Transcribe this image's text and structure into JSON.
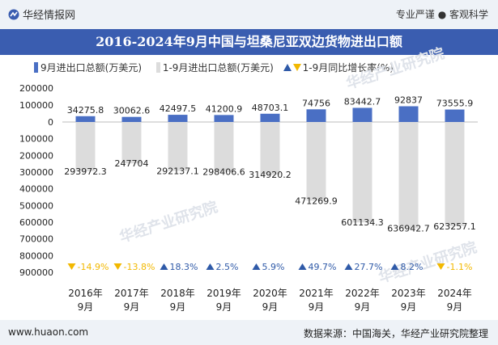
{
  "header": {
    "brand": "华经情报网",
    "tagline": "专业严谨 ● 客观科学"
  },
  "title": "2016-2024年9月中国与坦桑尼亚双边货物进出口额",
  "legend": {
    "monthly": "9月进出口总额(万美元)",
    "cumulative": "1-9月进出口总额(万美元)",
    "rate": "1-9月同比增长率(%)"
  },
  "footer": {
    "site": "www.huaon.com",
    "source": "数据来源：中国海关，华经产业研究院整理"
  },
  "colors": {
    "monthly_bar": "#4a6fc4",
    "cumulative_bar": "#dcdcdc",
    "rate_up": "#2f5aa8",
    "rate_down": "#f2b800",
    "title_bg": "#3a5db0"
  },
  "chart_data": {
    "type": "bar",
    "categories": [
      "2016年\n9月",
      "2017年\n9月",
      "2018年\n9月",
      "2019年\n9月",
      "2020年\n9月",
      "2021年\n9月",
      "2022年\n9月",
      "2023年\n9月",
      "2024年\n9月"
    ],
    "series": [
      {
        "name": "9月进出口总额(万美元)",
        "values": [
          34275.8,
          30062.6,
          42497.5,
          41200.9,
          48703.1,
          74756,
          83442.7,
          92837,
          73555.9
        ],
        "value_labels": [
          "34275.8",
          "30062.6",
          "42497.5",
          "41200.9",
          "48703.1",
          "74756",
          "83442.7",
          "92837",
          "73555.9"
        ]
      },
      {
        "name": "1-9月进出口总额(万美元)",
        "values": [
          -293972.3,
          -247704,
          -292137.1,
          -298406.6,
          -314920.2,
          -471269.9,
          -601134.3,
          -636942.7,
          -623257.1
        ],
        "value_labels": [
          "293972.3",
          "247704",
          "292137.1",
          "298406.6",
          "314920.2",
          "471269.9",
          "601134.3",
          "636942.7",
          "623257.1"
        ]
      },
      {
        "name": "1-9月同比增长率(%)",
        "values": [
          -14.9,
          -13.8,
          18.3,
          2.5,
          5.9,
          49.7,
          27.7,
          8.2,
          -1.1
        ],
        "value_labels": [
          "-14.9%",
          "-13.8%",
          "18.3%",
          "2.5%",
          "5.9%",
          "49.7%",
          "27.7%",
          "8.2%",
          "-1.1%"
        ]
      }
    ],
    "yticks": [
      200000,
      100000,
      0,
      -100000,
      -200000,
      -300000,
      -400000,
      -500000,
      -600000,
      -700000,
      -800000,
      -900000
    ],
    "ytick_labels": [
      "200000",
      "100000",
      "0",
      "100000",
      "200000",
      "300000",
      "400000",
      "500000",
      "600000",
      "700000",
      "800000",
      "900000"
    ],
    "ylim": [
      -900000,
      200000
    ]
  }
}
